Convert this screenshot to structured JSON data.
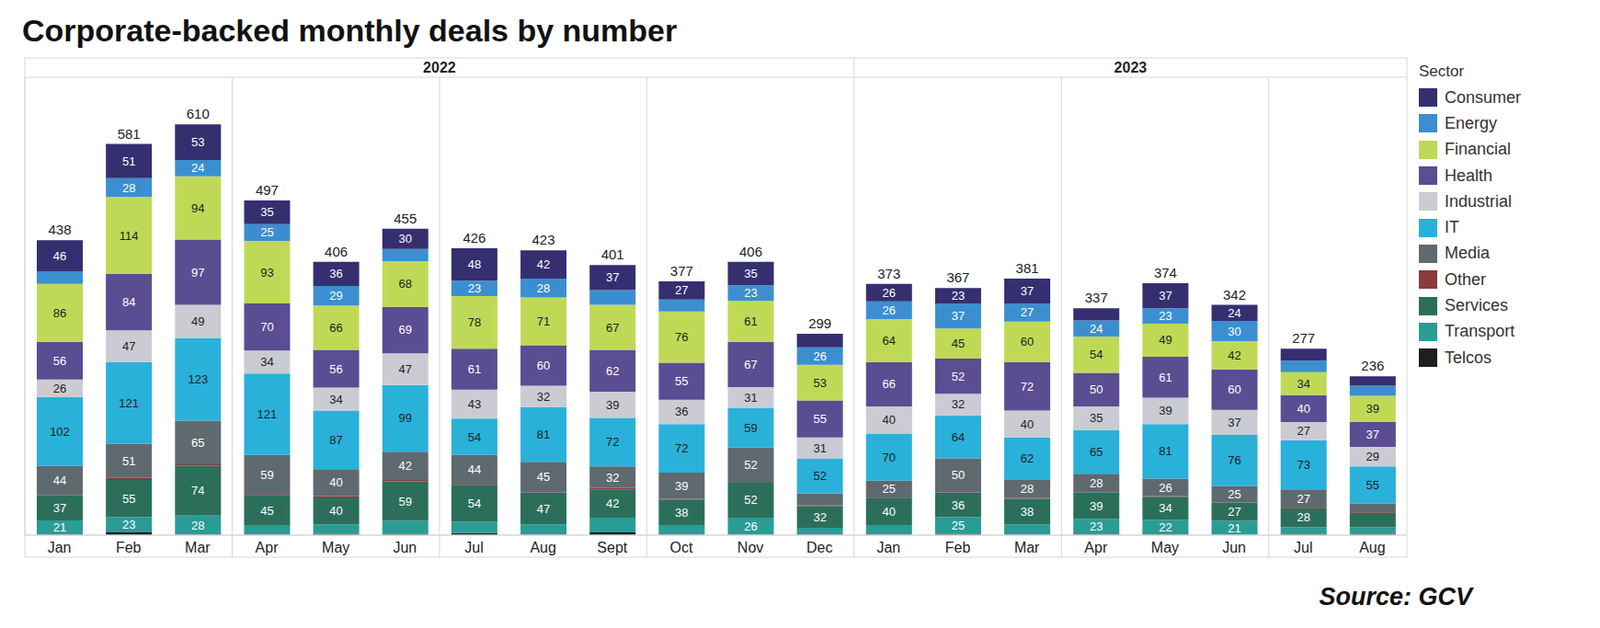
{
  "chart_data": {
    "type": "bar",
    "title": "Corporate-backed monthly deals by number",
    "source": "Source: GCV",
    "stacked": true,
    "data_labels": true,
    "tick_labels": "x",
    "grid": false,
    "legend": "right",
    "legend_title": "Sector",
    "categories": [
      "Jan",
      "Feb",
      "Mar",
      "Apr",
      "May",
      "Jun",
      "Jul",
      "Aug",
      "Sept",
      "Oct",
      "Nov",
      "Dec",
      "Jan",
      "Feb",
      "Mar",
      "Apr",
      "May",
      "Jun",
      "Jul",
      "Aug"
    ],
    "x_groups": [
      {
        "label": "2022",
        "count": 12
      },
      {
        "label": "2023",
        "count": 8
      }
    ],
    "ylim": [
      0,
      680
    ],
    "yticks": [
      0
    ],
    "totals": [
      438,
      581,
      610,
      497,
      406,
      455,
      426,
      423,
      401,
      377,
      406,
      299,
      373,
      367,
      381,
      337,
      374,
      342,
      277,
      236
    ],
    "series": [
      {
        "name": "Consumer",
        "color": "#352f70",
        "values": [
          46,
          51,
          53,
          35,
          36,
          30,
          48,
          42,
          37,
          27,
          35,
          20,
          26,
          23,
          37,
          18,
          37,
          24,
          18,
          14
        ],
        "value_labels": [
          "46",
          "51",
          "53",
          "35",
          "36",
          "30",
          "48",
          "42",
          "37",
          "27",
          "35",
          null,
          "26",
          "23",
          "37",
          null,
          "37",
          "24",
          null,
          null
        ]
      },
      {
        "name": "Energy",
        "color": "#3b8fd0",
        "values": [
          19,
          28,
          24,
          25,
          29,
          18,
          23,
          28,
          22,
          18,
          23,
          26,
          26,
          37,
          27,
          24,
          23,
          30,
          17,
          15
        ],
        "value_labels": [
          null,
          "28",
          "24",
          "25",
          "29",
          null,
          "23",
          "28",
          null,
          null,
          "23",
          "26",
          "26",
          "37",
          "27",
          "24",
          "23",
          "30",
          null,
          null
        ]
      },
      {
        "name": "Financial",
        "color": "#bfd957",
        "values": [
          86,
          114,
          94,
          93,
          66,
          68,
          78,
          71,
          67,
          76,
          61,
          53,
          64,
          45,
          60,
          54,
          49,
          42,
          34,
          39
        ],
        "value_labels": [
          "86",
          "114",
          "94",
          "93",
          "66",
          "68",
          "78",
          "71",
          "67",
          "76",
          "61",
          "53",
          "64",
          "45",
          "60",
          "54",
          "49",
          "42",
          "34",
          "39"
        ]
      },
      {
        "name": "Health",
        "color": "#5a4d92",
        "values": [
          56,
          84,
          97,
          70,
          56,
          69,
          61,
          60,
          62,
          55,
          67,
          55,
          66,
          52,
          72,
          50,
          61,
          60,
          40,
          37
        ],
        "value_labels": [
          "56",
          "84",
          "97",
          "70",
          "56",
          "69",
          "61",
          "60",
          "62",
          "55",
          "67",
          "55",
          "66",
          "52",
          "72",
          "50",
          "61",
          "60",
          "40",
          "37"
        ]
      },
      {
        "name": "Industrial",
        "color": "#cbcbd3",
        "values": [
          26,
          47,
          49,
          34,
          34,
          47,
          43,
          32,
          39,
          36,
          31,
          31,
          40,
          32,
          40,
          35,
          39,
          37,
          27,
          29
        ],
        "value_labels": [
          "26",
          "47",
          "49",
          "34",
          "34",
          "47",
          "43",
          "32",
          "39",
          "36",
          "31",
          "31",
          "40",
          "32",
          "40",
          "35",
          "39",
          "37",
          "27",
          "29"
        ]
      },
      {
        "name": "IT",
        "color": "#29b1da",
        "values": [
          102,
          121,
          123,
          121,
          87,
          99,
          54,
          81,
          72,
          72,
          59,
          52,
          70,
          64,
          62,
          65,
          81,
          76,
          73,
          55
        ],
        "value_labels": [
          "102",
          "121",
          "123",
          "121",
          "87",
          "99",
          "54",
          "81",
          "72",
          "72",
          "59",
          "52",
          "70",
          "64",
          "62",
          "65",
          "81",
          "76",
          "73",
          "55"
        ]
      },
      {
        "name": "Media",
        "color": "#5f6970",
        "values": [
          44,
          51,
          65,
          59,
          40,
          42,
          44,
          45,
          32,
          39,
          52,
          18,
          25,
          50,
          28,
          28,
          26,
          25,
          27,
          13
        ],
        "value_labels": [
          "44",
          "51",
          "65",
          "59",
          "40",
          "42",
          "44",
          "45",
          "32",
          "39",
          "52",
          null,
          "25",
          "50",
          "28",
          "28",
          "26",
          "25",
          "27",
          null
        ]
      },
      {
        "name": "Other",
        "color": "#8b3a3e",
        "values": [
          0,
          3,
          2,
          1,
          2,
          2,
          1,
          1,
          2,
          1,
          0,
          1,
          1,
          1,
          1,
          0,
          1,
          0,
          1,
          1
        ],
        "value_labels": [
          null,
          null,
          null,
          null,
          null,
          null,
          null,
          null,
          null,
          null,
          null,
          null,
          null,
          null,
          null,
          null,
          null,
          null,
          null,
          null
        ]
      },
      {
        "name": "Services",
        "color": "#2b6f5b",
        "values": [
          37,
          55,
          74,
          45,
          40,
          59,
          54,
          47,
          42,
          38,
          52,
          32,
          40,
          36,
          38,
          39,
          34,
          27,
          28,
          21
        ],
        "value_labels": [
          "37",
          "55",
          "74",
          "45",
          "40",
          "59",
          "54",
          "47",
          "42",
          "38",
          "52",
          "32",
          "40",
          "36",
          "38",
          "39",
          "34",
          "27",
          "28",
          null
        ]
      },
      {
        "name": "Transport",
        "color": "#2a9c96",
        "values": [
          21,
          23,
          28,
          13,
          14,
          19,
          17,
          15,
          22,
          14,
          26,
          10,
          14,
          25,
          15,
          23,
          22,
          21,
          10,
          10
        ],
        "value_labels": [
          "21",
          "23",
          "28",
          null,
          null,
          null,
          null,
          null,
          null,
          null,
          "26",
          null,
          null,
          "25",
          null,
          "23",
          "22",
          "21",
          null,
          null
        ]
      },
      {
        "name": "Telcos",
        "color": "#1e1e1e",
        "values": [
          1,
          4,
          1,
          1,
          2,
          2,
          3,
          1,
          4,
          1,
          0,
          1,
          1,
          2,
          1,
          1,
          1,
          0,
          2,
          2
        ],
        "value_labels": [
          null,
          null,
          null,
          null,
          null,
          null,
          null,
          null,
          null,
          null,
          null,
          null,
          null,
          null,
          null,
          null,
          null,
          null,
          null,
          null
        ]
      }
    ]
  }
}
